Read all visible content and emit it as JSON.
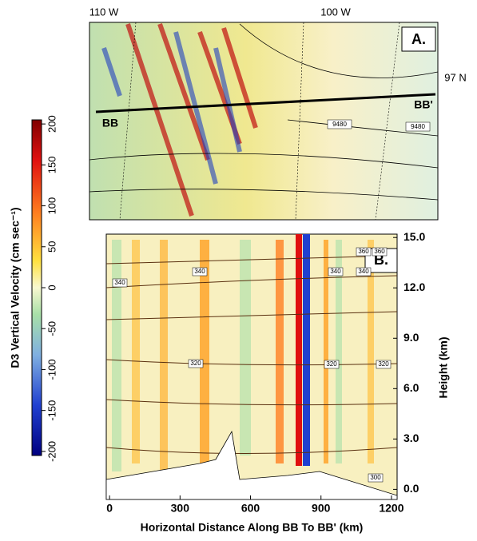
{
  "colorbar": {
    "label": "D3 Vertical Velocity (cm sec⁻¹)",
    "lim": [
      -205,
      205
    ],
    "ticks": [
      200,
      150,
      100,
      50,
      0,
      -50,
      -100,
      -150,
      -200
    ]
  },
  "map": {
    "panel_label": "A.",
    "lon_labels": [
      "110 W",
      "100 W"
    ],
    "lat_label": "97 N",
    "section_start": "BB",
    "section_end": "BB'",
    "contour_labels": [
      "9480",
      "9480"
    ]
  },
  "section": {
    "panel_label": "B.",
    "xlabel": "Horizontal Distance Along BB To BB' (km)",
    "ylabel": "Height (km)",
    "xlim": [
      -14,
      1224
    ],
    "ylim": [
      -0.6,
      15.2
    ],
    "xticks": [
      0,
      300,
      600,
      900,
      1200
    ],
    "yticks": [
      {
        "value": 0,
        "label": "0.0"
      },
      {
        "value": 3,
        "label": "3.0"
      },
      {
        "value": 6,
        "label": "6.0"
      },
      {
        "value": 9,
        "label": "9.0"
      },
      {
        "value": 12,
        "label": "12.0"
      },
      {
        "value": 15,
        "label": "15.0"
      }
    ],
    "contour_labels": [
      "360",
      "360",
      "340",
      "340",
      "340",
      "340",
      "320",
      "320",
      "320",
      "300"
    ]
  }
}
